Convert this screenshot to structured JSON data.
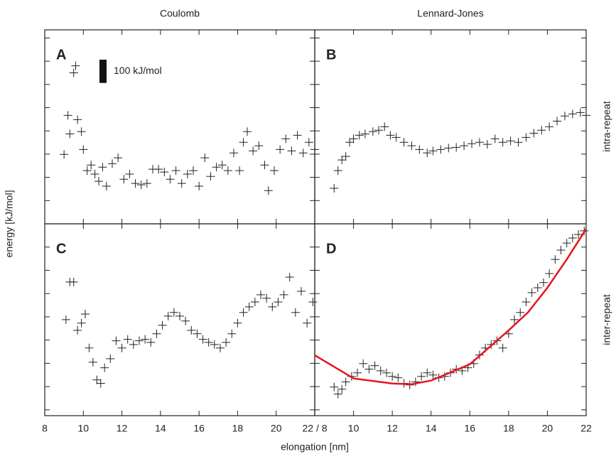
{
  "figure": {
    "column_titles": [
      "Coulomb",
      "Lennard-Jones"
    ],
    "row_titles": [
      "intra-repeat",
      "inter-repeat"
    ],
    "xlabel": "elongation [nm]",
    "ylabel": "energy [kJ/mol]",
    "scale_bar": {
      "label": "100 kJ/mol",
      "value": 100
    }
  },
  "chart_data": [
    {
      "type": "scatter",
      "label": "A",
      "xlim": [
        8,
        22
      ],
      "ylim": [
        0,
        835
      ],
      "xticks": [
        8,
        10,
        12,
        14,
        16,
        18,
        20,
        22
      ],
      "yticks": [
        100,
        200,
        300,
        400,
        500,
        600,
        700,
        800
      ],
      "show_xtick_labels": false,
      "series": [
        {
          "color": "#222222",
          "style": "plus",
          "x": [
            9.0,
            9.2,
            9.3,
            9.5,
            9.6,
            9.7,
            9.9,
            10.0,
            10.2,
            10.4,
            10.6,
            10.8,
            11.0,
            11.2,
            11.5,
            11.8,
            12.1,
            12.4,
            12.7,
            13.0,
            13.3,
            13.6,
            13.9,
            14.2,
            14.5,
            14.8,
            15.1,
            15.4,
            15.7,
            16.0,
            16.3,
            16.6,
            16.9,
            17.2,
            17.5,
            17.8,
            18.1,
            18.3,
            18.5,
            18.8,
            19.1,
            19.4,
            19.6,
            19.9,
            20.2,
            20.5,
            20.8,
            21.1,
            21.4,
            21.7,
            22.0
          ],
          "values": [
            299,
            467,
            387,
            650,
            680,
            448,
            397,
            320,
            229,
            253,
            214,
            183,
            244,
            162,
            259,
            284,
            192,
            214,
            174,
            168,
            174,
            235,
            235,
            223,
            192,
            229,
            174,
            214,
            229,
            162,
            284,
            204,
            244,
            253,
            229,
            305,
            229,
            351,
            397,
            314,
            336,
            253,
            143,
            229,
            320,
            366,
            314,
            381,
            305,
            351,
            320
          ]
        }
      ]
    },
    {
      "type": "scatter",
      "label": "B",
      "xlim": [
        8,
        22
      ],
      "ylim": [
        0,
        835
      ],
      "xticks": [
        8,
        10,
        12,
        14,
        16,
        18,
        20,
        22
      ],
      "yticks": [
        100,
        200,
        300,
        400,
        500,
        600,
        700,
        800
      ],
      "show_xtick_labels": false,
      "series": [
        {
          "color": "#222222",
          "style": "plus",
          "x": [
            9.0,
            9.2,
            9.4,
            9.6,
            9.8,
            10.0,
            10.3,
            10.6,
            11.0,
            11.3,
            11.6,
            11.9,
            12.2,
            12.6,
            13.0,
            13.4,
            13.8,
            14.1,
            14.5,
            14.9,
            15.3,
            15.7,
            16.1,
            16.5,
            16.9,
            17.3,
            17.7,
            18.1,
            18.5,
            18.9,
            19.3,
            19.7,
            20.1,
            20.5,
            20.9,
            21.3,
            21.7,
            22.0
          ],
          "values": [
            153,
            229,
            275,
            290,
            351,
            366,
            381,
            387,
            397,
            403,
            418,
            381,
            372,
            351,
            336,
            320,
            305,
            314,
            320,
            326,
            329,
            336,
            345,
            351,
            342,
            366,
            351,
            357,
            351,
            372,
            390,
            403,
            418,
            442,
            464,
            473,
            479,
            467
          ]
        }
      ]
    },
    {
      "type": "scatter",
      "label": "C",
      "xlim": [
        8,
        22
      ],
      "ylim": [
        75,
        900
      ],
      "xticks": [
        8,
        10,
        12,
        14,
        16,
        18,
        20,
        {
          "value": 22,
          "label": "22 / 8"
        }
      ],
      "yticks": [
        100,
        200,
        300,
        400,
        500,
        600,
        700,
        800
      ],
      "show_xtick_labels": true,
      "series": [
        {
          "color": "#222222",
          "style": "plus",
          "x": [
            9.1,
            9.3,
            9.5,
            9.7,
            9.9,
            10.1,
            10.3,
            10.5,
            10.7,
            10.9,
            11.1,
            11.4,
            11.7,
            12.0,
            12.3,
            12.6,
            12.9,
            13.2,
            13.5,
            13.8,
            14.1,
            14.4,
            14.7,
            15.0,
            15.3,
            15.6,
            15.9,
            16.2,
            16.5,
            16.8,
            17.1,
            17.4,
            17.7,
            18.0,
            18.3,
            18.6,
            18.9,
            19.2,
            19.5,
            19.8,
            20.1,
            20.4,
            20.7,
            21.0,
            21.3,
            21.6,
            21.9
          ],
          "values": [
            488,
            650,
            650,
            442,
            473,
            512,
            366,
            305,
            229,
            214,
            281,
            320,
            397,
            366,
            403,
            381,
            397,
            403,
            390,
            427,
            464,
            503,
            519,
            503,
            482,
            442,
            427,
            403,
            390,
            381,
            366,
            390,
            427,
            473,
            519,
            543,
            564,
            595,
            580,
            543,
            564,
            595,
            671,
            519,
            610,
            473,
            564
          ]
        }
      ]
    },
    {
      "type": "scatter",
      "label": "D",
      "xlim": [
        8,
        22
      ],
      "ylim": [
        75,
        900
      ],
      "xticks": [
        8,
        10,
        12,
        14,
        16,
        18,
        20,
        22
      ],
      "yticks": [
        100,
        200,
        300,
        400,
        500,
        600,
        700,
        800
      ],
      "show_xtick_labels": true,
      "series": [
        {
          "color": "#222222",
          "style": "plus",
          "x": [
            9.0,
            9.2,
            9.4,
            9.6,
            9.9,
            10.2,
            10.5,
            10.8,
            11.1,
            11.4,
            11.7,
            12.0,
            12.3,
            12.6,
            12.9,
            13.2,
            13.5,
            13.8,
            14.1,
            14.4,
            14.7,
            15.0,
            15.3,
            15.6,
            15.9,
            16.2,
            16.5,
            16.8,
            17.1,
            17.4,
            17.7,
            18.0,
            18.3,
            18.6,
            18.9,
            19.2,
            19.5,
            19.8,
            20.1,
            20.4,
            20.7,
            21.0,
            21.3,
            21.6,
            21.9
          ],
          "values": [
            198,
            168,
            189,
            220,
            244,
            259,
            299,
            275,
            290,
            268,
            259,
            244,
            238,
            214,
            207,
            220,
            244,
            259,
            250,
            238,
            244,
            259,
            275,
            268,
            281,
            299,
            336,
            366,
            381,
            397,
            366,
            427,
            488,
            519,
            564,
            604,
            625,
            647,
            686,
            747,
            787,
            817,
            839,
            854,
            870
          ]
        },
        {
          "color": "#e8141c",
          "style": "line",
          "x": [
            8,
            10,
            12,
            13,
            14,
            16,
            18,
            19,
            20,
            21,
            22
          ],
          "values": [
            335,
            235,
            213,
            210,
            226,
            296,
            442,
            519,
            625,
            747,
            878
          ]
        }
      ]
    }
  ]
}
